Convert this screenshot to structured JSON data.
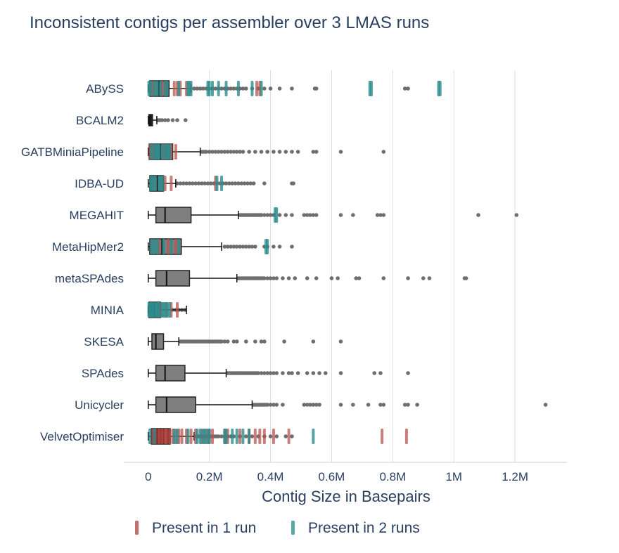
{
  "chart_data": {
    "type": "box",
    "title": "Inconsistent contigs per assembler over 3 LMAS runs",
    "xlabel": "Contig Size in Basepairs",
    "ylabel": "",
    "xlim": [
      -80000,
      1370000
    ],
    "x_ticks": [
      {
        "value": 0,
        "label": "0"
      },
      {
        "value": 200000,
        "label": "0.2M"
      },
      {
        "value": 400000,
        "label": "0.4M"
      },
      {
        "value": 600000,
        "label": "0.6M"
      },
      {
        "value": 800000,
        "label": "0.8M"
      },
      {
        "value": 1000000,
        "label": "1M"
      },
      {
        "value": 1200000,
        "label": "1.2M"
      }
    ],
    "grid": true,
    "legend_position": "bottom",
    "colors": {
      "box_fill": "#7f7f7f",
      "box_stroke": "#222222",
      "outlier": "#6e6e6e",
      "run1": "#b85450",
      "run2": "#2a8c8c",
      "velvet_box": "#7b1010",
      "grid": "#dddddd",
      "text": "#2a3f5f"
    },
    "legend": [
      {
        "label": "Present in 1 run",
        "color": "#c0716d"
      },
      {
        "label": "Present in 2 runs",
        "color": "#5aaaa8"
      }
    ],
    "assemblers": [
      {
        "name": "ABySS",
        "q1": 5000,
        "median": 35000,
        "q3": 68000,
        "whisker_low": 0,
        "whisker_high": 140000,
        "outliers": [
          150000,
          160000,
          170000,
          180000,
          190000,
          200000,
          210000,
          220000,
          230000,
          240000,
          250000,
          260000,
          270000,
          280000,
          290000,
          300000,
          310000,
          320000,
          340000,
          360000,
          380000,
          400000,
          430000,
          470000,
          545000,
          550000,
          840000,
          850000
        ],
        "run1": [
          12000,
          45000,
          58000,
          85000,
          95000,
          105000,
          125000,
          355000,
          365000
        ],
        "run2": [
          2000,
          8000,
          20000,
          30000,
          40000,
          55000,
          62000,
          100000,
          130000,
          135000,
          140000,
          195000,
          200000,
          210000,
          230000,
          255000,
          295000,
          340000,
          370000,
          725000,
          730000,
          950000,
          955000
        ]
      },
      {
        "name": "BCALM2",
        "q1": 2000,
        "median": 6000,
        "q3": 14000,
        "whisker_low": 0,
        "whisker_high": 28000,
        "outliers": [
          32000,
          38000,
          45000,
          55000,
          65000,
          80000,
          95000,
          122000
        ],
        "run1": [],
        "run2": []
      },
      {
        "name": "GATBMiniaPipeline",
        "q1": 3000,
        "median": 40000,
        "q3": 80000,
        "whisker_low": 0,
        "whisker_high": 170000,
        "outliers": [
          175000,
          180000,
          185000,
          190000,
          200000,
          210000,
          220000,
          230000,
          240000,
          250000,
          260000,
          270000,
          280000,
          290000,
          300000,
          310000,
          330000,
          350000,
          370000,
          390000,
          410000,
          430000,
          450000,
          470000,
          490000,
          540000,
          550000,
          630000,
          770000
        ],
        "run1": [
          5000,
          15000,
          50000,
          75000,
          90000
        ],
        "run2": [
          10000,
          20000,
          25000,
          30000,
          35000,
          45000,
          55000,
          60000,
          65000,
          70000
        ]
      },
      {
        "name": "IDBA-UD",
        "q1": 5000,
        "median": 30000,
        "q3": 50000,
        "whisker_low": 0,
        "whisker_high": 90000,
        "outliers": [
          95000,
          105000,
          115000,
          125000,
          135000,
          145000,
          155000,
          165000,
          175000,
          185000,
          195000,
          205000,
          215000,
          225000,
          235000,
          245000,
          255000,
          265000,
          275000,
          285000,
          295000,
          305000,
          315000,
          325000,
          335000,
          345000,
          380000,
          470000,
          475000
        ],
        "run1": [
          55000,
          75000,
          220000
        ],
        "run2": [
          8000,
          15000,
          22000,
          35000,
          42000,
          48000,
          225000,
          240000
        ]
      },
      {
        "name": "MEGAHIT",
        "q1": 25000,
        "median": 55000,
        "q3": 140000,
        "whisker_low": 0,
        "whisker_high": 295000,
        "outliers": [
          300000,
          305000,
          310000,
          315000,
          320000,
          325000,
          330000,
          335000,
          340000,
          345000,
          350000,
          355000,
          360000,
          365000,
          370000,
          380000,
          390000,
          400000,
          410000,
          430000,
          450000,
          470000,
          510000,
          520000,
          530000,
          540000,
          550000,
          630000,
          670000,
          750000,
          760000,
          770000,
          1080000,
          1205000
        ],
        "run1": [],
        "run2": [
          415000,
          420000
        ]
      },
      {
        "name": "MetaHipMer2",
        "q1": 5000,
        "median": 45000,
        "q3": 108000,
        "whisker_low": 0,
        "whisker_high": 240000,
        "outliers": [
          250000,
          260000,
          270000,
          280000,
          290000,
          300000,
          310000,
          320000,
          330000,
          340000,
          350000,
          380000,
          390000,
          410000,
          430000,
          470000
        ],
        "run1": [
          35000,
          65000,
          90000
        ],
        "run2": [
          10000,
          20000,
          30000,
          50000,
          75000,
          100000,
          385000,
          390000
        ]
      },
      {
        "name": "metaSPAdes",
        "q1": 25000,
        "median": 60000,
        "q3": 135000,
        "whisker_low": 0,
        "whisker_high": 290000,
        "outliers": [
          295000,
          300000,
          305000,
          310000,
          315000,
          320000,
          325000,
          330000,
          335000,
          340000,
          345000,
          350000,
          355000,
          360000,
          365000,
          370000,
          375000,
          380000,
          390000,
          400000,
          410000,
          420000,
          440000,
          460000,
          480000,
          520000,
          550000,
          600000,
          620000,
          680000,
          690000,
          770000,
          850000,
          900000,
          920000,
          1035000,
          1040000
        ],
        "run1": [],
        "run2": []
      },
      {
        "name": "MINIA",
        "q1": 2000,
        "median": 20000,
        "q3": 40000,
        "whisker_low": 0,
        "whisker_high": 125000,
        "outliers": [
          80000,
          90000,
          100000,
          110000,
          120000
        ],
        "run1": [
          40000,
          60000,
          75000,
          95000
        ],
        "run2": [
          2000,
          5000,
          10000,
          15000,
          20000,
          25000,
          30000,
          35000,
          45000,
          50000,
          55000,
          62000,
          70000
        ]
      },
      {
        "name": "SKESA",
        "q1": 12000,
        "median": 25000,
        "q3": 50000,
        "whisker_low": 0,
        "whisker_high": 100000,
        "outliers": [
          105000,
          110000,
          115000,
          120000,
          125000,
          130000,
          135000,
          140000,
          145000,
          150000,
          155000,
          160000,
          165000,
          170000,
          175000,
          180000,
          185000,
          190000,
          195000,
          200000,
          205000,
          210000,
          215000,
          220000,
          225000,
          230000,
          235000,
          240000,
          250000,
          260000,
          280000,
          290000,
          320000,
          350000,
          370000,
          380000,
          445000,
          540000,
          630000
        ],
        "run1": [],
        "run2": []
      },
      {
        "name": "SPAdes",
        "q1": 25000,
        "median": 55000,
        "q3": 120000,
        "whisker_low": 0,
        "whisker_high": 255000,
        "outliers": [
          260000,
          265000,
          270000,
          275000,
          280000,
          285000,
          290000,
          295000,
          300000,
          305000,
          310000,
          315000,
          320000,
          325000,
          330000,
          335000,
          340000,
          345000,
          350000,
          355000,
          360000,
          370000,
          380000,
          390000,
          400000,
          410000,
          420000,
          440000,
          460000,
          470000,
          490000,
          520000,
          540000,
          560000,
          580000,
          630000,
          740000,
          760000,
          850000
        ],
        "run1": [],
        "run2": []
      },
      {
        "name": "Unicycler",
        "q1": 25000,
        "median": 60000,
        "q3": 155000,
        "whisker_low": 0,
        "whisker_high": 340000,
        "outliers": [
          345000,
          350000,
          355000,
          360000,
          365000,
          370000,
          375000,
          380000,
          385000,
          390000,
          400000,
          410000,
          420000,
          440000,
          510000,
          520000,
          530000,
          540000,
          550000,
          560000,
          630000,
          670000,
          720000,
          760000,
          770000,
          840000,
          850000,
          880000,
          1300000
        ],
        "run1": [],
        "run2": []
      },
      {
        "name": "VelvetOptimiser",
        "q1": 10000,
        "median": 28000,
        "q3": 72000,
        "whisker_low": 0,
        "whisker_high": 150000,
        "outliers": [
          155000,
          160000,
          165000,
          170000,
          175000,
          180000,
          185000,
          190000,
          195000,
          200000,
          205000,
          210000,
          215000,
          220000,
          225000,
          230000,
          240000,
          250000,
          260000,
          270000,
          280000,
          300000,
          320000,
          340000,
          360000,
          380000,
          400000,
          420000,
          450000,
          470000
        ],
        "run1": [
          15000,
          25000,
          35000,
          45000,
          55000,
          60000,
          70000,
          80000,
          90000,
          100000,
          110000,
          125000,
          140000,
          155000,
          175000,
          190000,
          200000,
          210000,
          250000,
          260000,
          300000,
          330000,
          350000,
          365000,
          380000,
          410000,
          460000,
          765000,
          845000
        ],
        "run2": [
          5000,
          20000,
          85000,
          95000,
          130000,
          160000,
          170000,
          180000,
          185000,
          195000,
          200000,
          250000,
          255000,
          275000,
          290000,
          310000,
          330000,
          540000
        ]
      }
    ]
  }
}
